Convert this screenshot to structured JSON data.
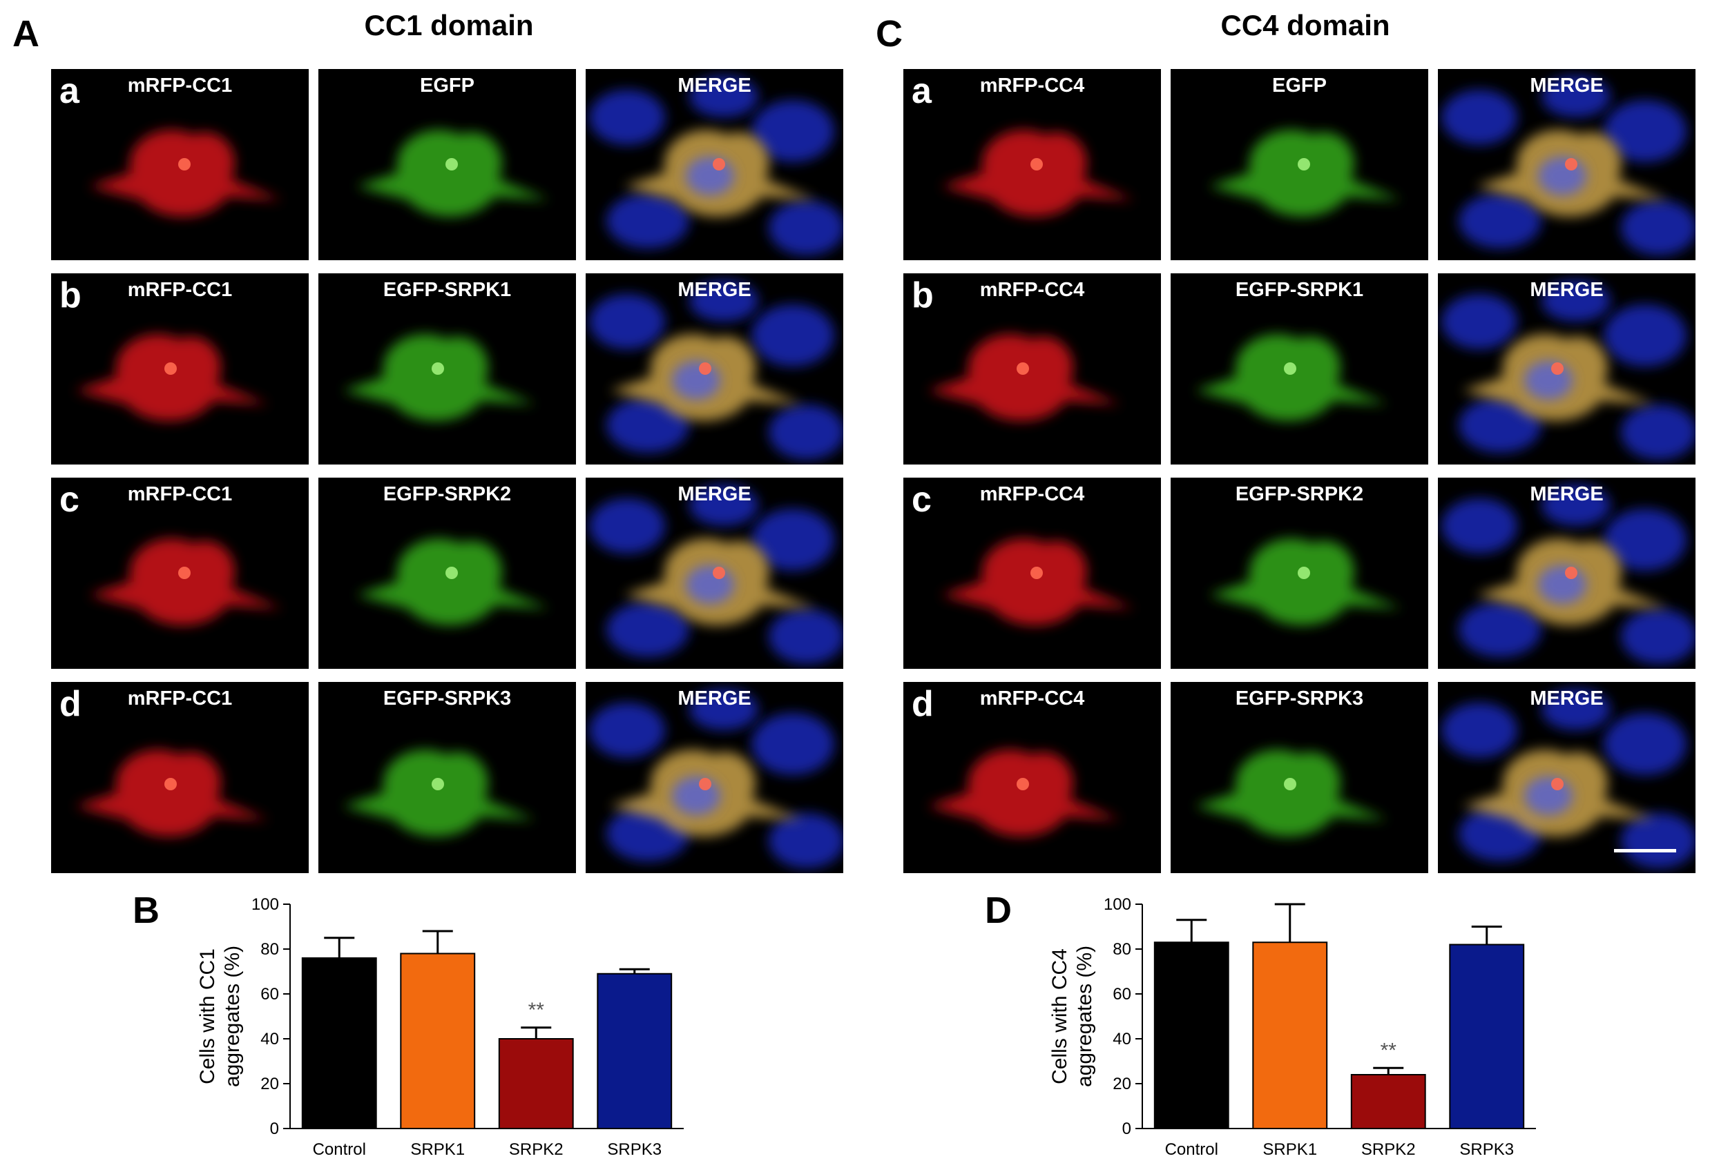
{
  "figure": {
    "left": {
      "letter": "A",
      "title": "CC1 domain",
      "rows": [
        {
          "letter": "a",
          "labels": [
            "mRFP-CC1",
            "EGFP",
            "MERGE"
          ]
        },
        {
          "letter": "b",
          "labels": [
            "mRFP-CC1",
            "EGFP-SRPK1",
            "MERGE"
          ]
        },
        {
          "letter": "c",
          "labels": [
            "mRFP-CC1",
            "EGFP-SRPK2",
            "MERGE"
          ]
        },
        {
          "letter": "d",
          "labels": [
            "mRFP-CC1",
            "EGFP-SRPK3",
            "MERGE"
          ]
        }
      ]
    },
    "right": {
      "letter": "C",
      "title": "CC4 domain",
      "rows": [
        {
          "letter": "a",
          "labels": [
            "mRFP-CC4",
            "EGFP",
            "MERGE"
          ]
        },
        {
          "letter": "b",
          "labels": [
            "mRFP-CC4",
            "EGFP-SRPK1",
            "MERGE"
          ]
        },
        {
          "letter": "c",
          "labels": [
            "mRFP-CC4",
            "EGFP-SRPK2",
            "MERGE"
          ]
        },
        {
          "letter": "d",
          "labels": [
            "mRFP-CC4",
            "EGFP-SRPK3",
            "MERGE"
          ]
        }
      ]
    }
  },
  "chart_letters": {
    "B": "B",
    "D": "D"
  },
  "colors": {
    "control": "#000000",
    "srpk1": "#f26a0f",
    "srpk2": "#9b0b0b",
    "srpk3": "#0a1a8c",
    "rfp": "#e0171a",
    "gfp": "#39b51d",
    "dapi": "#1e2ed0"
  },
  "chart_data": [
    {
      "type": "bar",
      "panel": "B",
      "categories": [
        "Control",
        "SRPK1",
        "SRPK2",
        "SRPK3"
      ],
      "values": [
        76,
        78,
        40,
        69
      ],
      "errors": [
        9,
        10,
        5,
        2
      ],
      "ylabel": "Cells with CC1\naggregates (%)",
      "ylim": [
        0,
        100
      ],
      "yticks": [
        0,
        20,
        40,
        60,
        80,
        100
      ],
      "annotations": [
        {
          "category": "SRPK2",
          "text": "**"
        }
      ]
    },
    {
      "type": "bar",
      "panel": "D",
      "categories": [
        "Control",
        "SRPK1",
        "SRPK2",
        "SRPK3"
      ],
      "values": [
        83,
        83,
        24,
        82
      ],
      "errors": [
        10,
        17,
        3,
        8
      ],
      "ylabel": "Cells with CC4\naggregates (%)",
      "ylim": [
        0,
        100
      ],
      "yticks": [
        0,
        20,
        40,
        60,
        80,
        100
      ],
      "annotations": [
        {
          "category": "SRPK2",
          "text": "**"
        }
      ]
    }
  ]
}
